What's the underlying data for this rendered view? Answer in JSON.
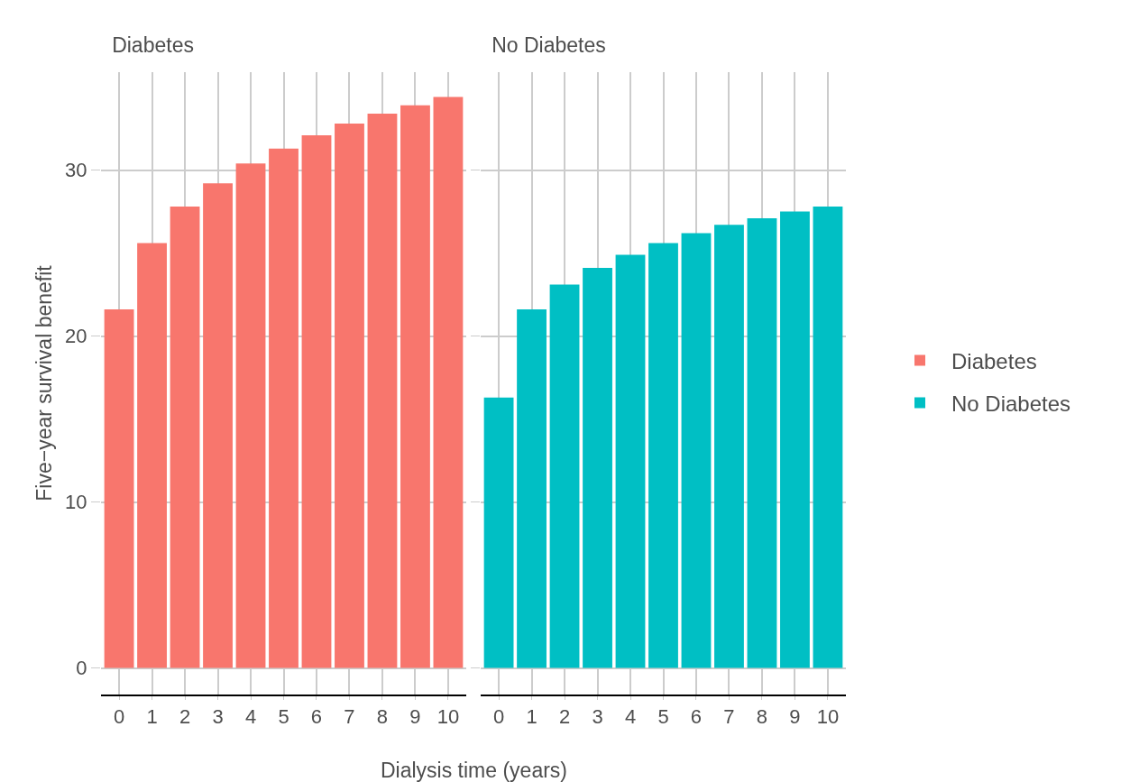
{
  "chart_data": [
    {
      "type": "bar",
      "title": "Diabetes",
      "xlabel": "Dialysis time (years)",
      "ylabel": "Five−year survival benefit",
      "categories": [
        "0",
        "1",
        "2",
        "3",
        "4",
        "5",
        "6",
        "7",
        "8",
        "9",
        "10"
      ],
      "series": [
        {
          "name": "Diabetes",
          "color": "#f8766d",
          "values": [
            21.6,
            25.6,
            27.8,
            29.2,
            30.4,
            31.3,
            32.1,
            32.8,
            33.4,
            33.9,
            34.4
          ]
        }
      ],
      "ylim": [
        -1.6,
        35.9
      ],
      "yticks": [
        0,
        10,
        20,
        30
      ],
      "grid": true,
      "legend": "right"
    },
    {
      "type": "bar",
      "title": "No Diabetes",
      "categories": [
        "0",
        "1",
        "2",
        "3",
        "4",
        "5",
        "6",
        "7",
        "8",
        "9",
        "10"
      ],
      "series": [
        {
          "name": "No Diabetes",
          "color": "#00bfc4",
          "values": [
            16.3,
            21.6,
            23.1,
            24.1,
            24.9,
            25.6,
            26.2,
            26.7,
            27.1,
            27.5,
            27.8
          ]
        }
      ],
      "ylim": [
        -1.6,
        35.9
      ],
      "yticks": [
        0,
        10,
        20,
        30
      ],
      "grid": true,
      "legend": "right",
      "tick_labels": "x"
    }
  ]
}
